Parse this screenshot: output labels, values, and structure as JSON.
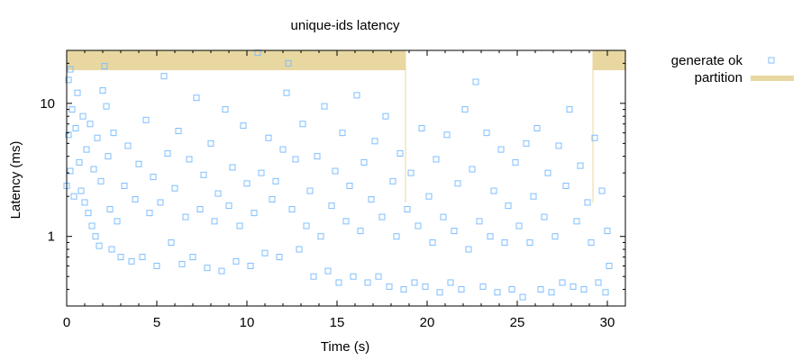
{
  "chart_data": {
    "type": "scatter",
    "title": "unique-ids latency",
    "xlabel": "Time (s)",
    "ylabel": "Latency (ms)",
    "xlim": [
      0,
      31
    ],
    "ylim": [
      0.3,
      25
    ],
    "yscale": "log",
    "x_ticks": [
      0,
      5,
      10,
      15,
      20,
      25,
      30
    ],
    "x_tick_labels": [
      "0",
      "5",
      "10",
      "15",
      "20",
      "25",
      "30"
    ],
    "y_ticks": [
      1,
      10
    ],
    "y_tick_labels": [
      "1",
      "10"
    ],
    "grid": false,
    "legend_position": "outside-top-right",
    "series": [
      {
        "name": "generate ok",
        "marker": "open-square",
        "color": "#7fbfff",
        "points": [
          [
            0.0,
            2.4
          ],
          [
            0.1,
            5.8
          ],
          [
            0.1,
            15.0
          ],
          [
            0.2,
            3.1
          ],
          [
            0.2,
            18.0
          ],
          [
            0.3,
            9.0
          ],
          [
            0.4,
            2.0
          ],
          [
            0.5,
            6.5
          ],
          [
            0.6,
            12.0
          ],
          [
            0.7,
            3.6
          ],
          [
            0.8,
            2.2
          ],
          [
            0.9,
            8.0
          ],
          [
            1.0,
            1.8
          ],
          [
            1.1,
            4.5
          ],
          [
            1.2,
            1.5
          ],
          [
            1.3,
            7.0
          ],
          [
            1.4,
            1.2
          ],
          [
            1.5,
            3.2
          ],
          [
            1.6,
            1.0
          ],
          [
            1.7,
            5.5
          ],
          [
            1.8,
            0.85
          ],
          [
            1.9,
            2.6
          ],
          [
            2.0,
            12.5
          ],
          [
            2.1,
            19.0
          ],
          [
            2.2,
            9.5
          ],
          [
            2.3,
            4.0
          ],
          [
            2.4,
            1.6
          ],
          [
            2.5,
            0.8
          ],
          [
            2.6,
            6.0
          ],
          [
            2.8,
            1.3
          ],
          [
            3.0,
            0.7
          ],
          [
            3.2,
            2.4
          ],
          [
            3.4,
            4.8
          ],
          [
            3.6,
            0.65
          ],
          [
            3.8,
            1.9
          ],
          [
            4.0,
            3.5
          ],
          [
            4.2,
            0.7
          ],
          [
            4.4,
            7.5
          ],
          [
            4.6,
            1.5
          ],
          [
            4.8,
            2.8
          ],
          [
            5.0,
            0.6
          ],
          [
            5.2,
            1.8
          ],
          [
            5.4,
            16.0
          ],
          [
            5.6,
            4.2
          ],
          [
            5.8,
            0.9
          ],
          [
            6.0,
            2.3
          ],
          [
            6.2,
            6.2
          ],
          [
            6.4,
            0.62
          ],
          [
            6.6,
            1.4
          ],
          [
            6.8,
            3.8
          ],
          [
            7.0,
            0.7
          ],
          [
            7.2,
            11.0
          ],
          [
            7.4,
            1.6
          ],
          [
            7.6,
            2.9
          ],
          [
            7.8,
            0.58
          ],
          [
            8.0,
            5.0
          ],
          [
            8.2,
            1.3
          ],
          [
            8.4,
            2.1
          ],
          [
            8.6,
            0.55
          ],
          [
            8.8,
            9.0
          ],
          [
            9.0,
            1.7
          ],
          [
            9.2,
            3.3
          ],
          [
            9.4,
            0.65
          ],
          [
            9.6,
            1.2
          ],
          [
            9.8,
            6.8
          ],
          [
            10.0,
            2.5
          ],
          [
            10.2,
            0.6
          ],
          [
            10.4,
            1.5
          ],
          [
            10.6,
            24.0
          ],
          [
            10.8,
            3.0
          ],
          [
            11.0,
            0.75
          ],
          [
            11.2,
            5.5
          ],
          [
            11.4,
            1.9
          ],
          [
            11.6,
            2.6
          ],
          [
            11.8,
            0.7
          ],
          [
            12.0,
            4.5
          ],
          [
            12.2,
            12.0
          ],
          [
            12.3,
            20.0
          ],
          [
            12.5,
            1.6
          ],
          [
            12.7,
            3.8
          ],
          [
            12.9,
            0.8
          ],
          [
            13.1,
            7.0
          ],
          [
            13.3,
            1.2
          ],
          [
            13.5,
            2.2
          ],
          [
            13.7,
            0.5
          ],
          [
            13.9,
            4.0
          ],
          [
            14.1,
            1.0
          ],
          [
            14.3,
            9.5
          ],
          [
            14.5,
            0.55
          ],
          [
            14.7,
            1.7
          ],
          [
            14.9,
            3.1
          ],
          [
            15.1,
            0.45
          ],
          [
            15.3,
            6.0
          ],
          [
            15.5,
            1.3
          ],
          [
            15.7,
            2.4
          ],
          [
            15.9,
            0.5
          ],
          [
            16.1,
            11.5
          ],
          [
            16.3,
            1.1
          ],
          [
            16.5,
            3.6
          ],
          [
            16.7,
            0.45
          ],
          [
            16.9,
            1.9
          ],
          [
            17.1,
            5.2
          ],
          [
            17.3,
            0.5
          ],
          [
            17.5,
            1.4
          ],
          [
            17.7,
            8.0
          ],
          [
            17.9,
            0.42
          ],
          [
            18.1,
            2.6
          ],
          [
            18.3,
            1.0
          ],
          [
            18.5,
            4.2
          ],
          [
            18.7,
            0.4
          ],
          [
            18.9,
            1.6
          ],
          [
            19.1,
            3.0
          ],
          [
            19.3,
            0.45
          ],
          [
            19.5,
            1.2
          ],
          [
            19.7,
            6.5
          ],
          [
            19.9,
            0.42
          ],
          [
            20.1,
            2.0
          ],
          [
            20.3,
            0.9
          ],
          [
            20.5,
            3.8
          ],
          [
            20.7,
            0.38
          ],
          [
            20.9,
            1.4
          ],
          [
            21.1,
            5.8
          ],
          [
            21.3,
            0.45
          ],
          [
            21.5,
            1.1
          ],
          [
            21.7,
            2.5
          ],
          [
            21.9,
            0.4
          ],
          [
            22.1,
            9.0
          ],
          [
            22.3,
            0.8
          ],
          [
            22.5,
            3.2
          ],
          [
            22.7,
            14.5
          ],
          [
            22.9,
            1.3
          ],
          [
            23.1,
            0.42
          ],
          [
            23.3,
            6.0
          ],
          [
            23.5,
            1.0
          ],
          [
            23.7,
            2.2
          ],
          [
            23.9,
            0.38
          ],
          [
            24.1,
            4.5
          ],
          [
            24.3,
            0.9
          ],
          [
            24.5,
            1.7
          ],
          [
            24.7,
            0.4
          ],
          [
            24.9,
            3.6
          ],
          [
            25.1,
            1.2
          ],
          [
            25.3,
            0.35
          ],
          [
            25.5,
            5.0
          ],
          [
            25.7,
            0.9
          ],
          [
            25.9,
            2.0
          ],
          [
            26.1,
            6.5
          ],
          [
            26.3,
            0.4
          ],
          [
            26.5,
            1.4
          ],
          [
            26.7,
            3.0
          ],
          [
            26.9,
            0.38
          ],
          [
            27.1,
            1.0
          ],
          [
            27.3,
            4.8
          ],
          [
            27.5,
            0.45
          ],
          [
            27.7,
            2.4
          ],
          [
            27.9,
            9.0
          ],
          [
            28.1,
            0.42
          ],
          [
            28.3,
            1.3
          ],
          [
            28.5,
            3.4
          ],
          [
            28.7,
            0.4
          ],
          [
            28.9,
            1.8
          ],
          [
            29.1,
            0.9
          ],
          [
            29.3,
            5.5
          ],
          [
            29.5,
            0.45
          ],
          [
            29.7,
            2.2
          ],
          [
            29.9,
            0.38
          ],
          [
            30.0,
            1.1
          ],
          [
            30.1,
            0.6
          ]
        ]
      },
      {
        "name": "partition",
        "marker": "band",
        "color": "#e8d7a0",
        "intervals": [
          [
            0.0,
            18.8
          ],
          [
            29.2,
            31.0
          ]
        ]
      }
    ]
  }
}
